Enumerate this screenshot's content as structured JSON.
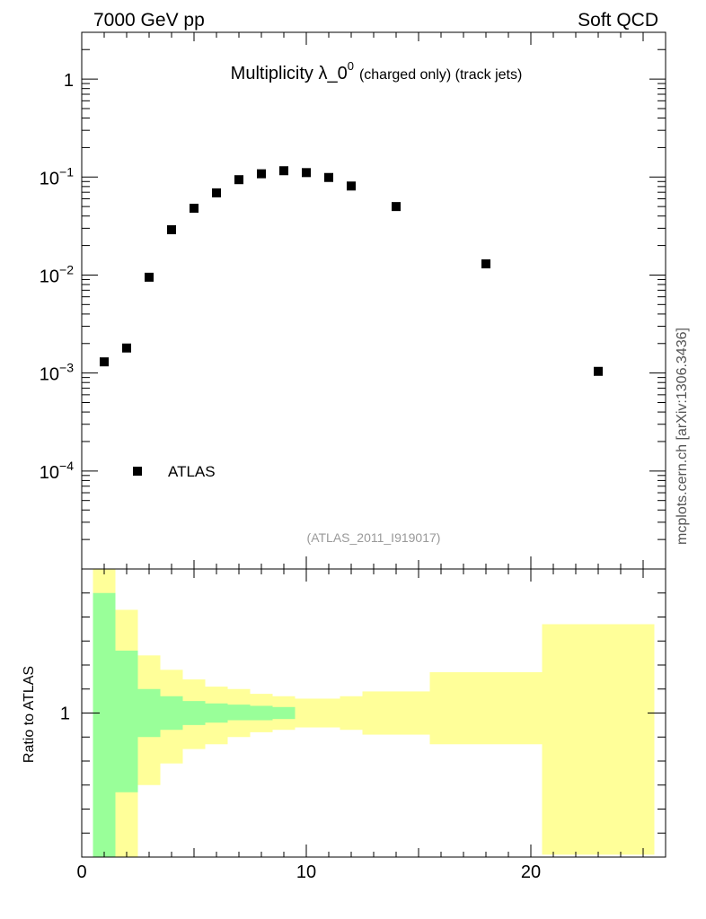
{
  "header": {
    "left": "7000 GeV pp",
    "right": "Soft QCD"
  },
  "side_label": "mcplots.cern.ch [arXiv:1306.3436]",
  "chart_data": [
    {
      "type": "scatter",
      "title": "Multiplicity λ_0",
      "title_superscript": "0",
      "title_suffix": "(charged only) (track jets)",
      "watermark": "(ATLAS_2011_I919017)",
      "xlim": [
        0,
        26
      ],
      "ylim": [
        1e-05,
        3
      ],
      "yscale": "log",
      "y_ticks": [
        {
          "value": 1,
          "base": "1",
          "exp": ""
        },
        {
          "value": 0.1,
          "base": "10",
          "exp": "−1"
        },
        {
          "value": 0.01,
          "base": "10",
          "exp": "−2"
        },
        {
          "value": 0.001,
          "base": "10",
          "exp": "−3"
        },
        {
          "value": 0.0001,
          "base": "10",
          "exp": "−4"
        }
      ],
      "legend": {
        "placement": "bottom-left",
        "entries": [
          "ATLAS"
        ]
      },
      "series": [
        {
          "name": "ATLAS",
          "color": "#000000",
          "marker": "square",
          "x": [
            1,
            2,
            3,
            4,
            5,
            6,
            7,
            8,
            9,
            10,
            11,
            12,
            14,
            18,
            23
          ],
          "y": [
            0.0013,
            0.0018,
            0.0095,
            0.029,
            0.048,
            0.069,
            0.094,
            0.108,
            0.116,
            0.111,
            0.099,
            0.081,
            0.05,
            0.013,
            0.00104
          ]
        }
      ]
    },
    {
      "type": "area",
      "ylabel": "Ratio to ATLAS",
      "xlim": [
        0,
        26
      ],
      "ylim": [
        0.4,
        1.6
      ],
      "x_ticks": [
        {
          "value": 0,
          "label": "0"
        },
        {
          "value": 10,
          "label": "10"
        },
        {
          "value": 20,
          "label": "20"
        }
      ],
      "y_ticks": [
        {
          "value": 1,
          "label": "1"
        }
      ],
      "bands": [
        {
          "kind": "total-uncertainty",
          "color": "#ffff99",
          "bins": [
            [
              0.5,
              1.5,
              0.4,
              1.64
            ],
            [
              1.5,
              2.5,
              0.4,
              1.43
            ],
            [
              2.5,
              3.5,
              0.7,
              1.24
            ],
            [
              3.5,
              4.5,
              0.79,
              1.18
            ],
            [
              4.5,
              5.5,
              0.85,
              1.14
            ],
            [
              5.5,
              6.5,
              0.87,
              1.11
            ],
            [
              6.5,
              7.5,
              0.9,
              1.1
            ],
            [
              7.5,
              8.5,
              0.92,
              1.08
            ],
            [
              8.5,
              9.5,
              0.93,
              1.07
            ],
            [
              9.5,
              10.5,
              0.94,
              1.06
            ],
            [
              10.5,
              11.5,
              0.94,
              1.06
            ],
            [
              11.5,
              12.5,
              0.93,
              1.07
            ],
            [
              12.5,
              15.5,
              0.91,
              1.09
            ],
            [
              15.5,
              20.5,
              0.87,
              1.17
            ],
            [
              20.5,
              25.5,
              0.41,
              1.37
            ]
          ]
        },
        {
          "kind": "statistical-uncertainty",
          "color": "#99ff99",
          "bins": [
            [
              0.5,
              1.5,
              0.4,
              1.5
            ],
            [
              1.5,
              2.5,
              0.67,
              1.26
            ],
            [
              2.5,
              3.5,
              0.9,
              1.1
            ],
            [
              3.5,
              4.5,
              0.93,
              1.07
            ],
            [
              4.5,
              5.5,
              0.95,
              1.05
            ],
            [
              5.5,
              6.5,
              0.96,
              1.04
            ],
            [
              6.5,
              7.5,
              0.97,
              1.035
            ],
            [
              7.5,
              8.5,
              0.97,
              1.03
            ],
            [
              8.5,
              9.5,
              0.975,
              1.025
            ]
          ]
        }
      ]
    }
  ]
}
